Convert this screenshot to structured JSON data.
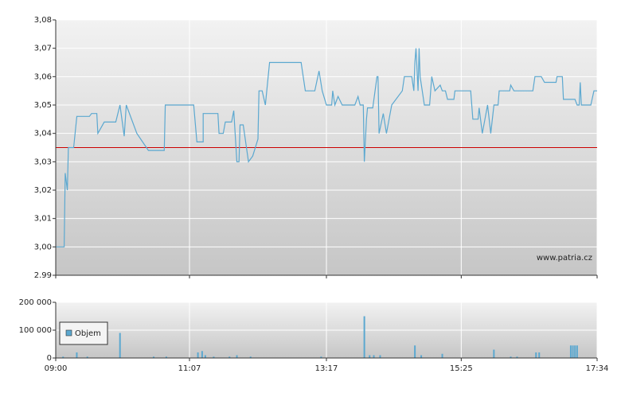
{
  "chart_data": [
    {
      "type": "line",
      "color": "#5ba8d0",
      "x": [
        "09:00",
        "09:08",
        "09:09",
        "09:11",
        "09:12",
        "09:17",
        "09:20",
        "09:32",
        "09:34",
        "09:39",
        "09:40",
        "09:46",
        "09:57",
        "10:01",
        "10:05",
        "10:07",
        "10:17",
        "10:28",
        "10:43",
        "10:44",
        "11:11",
        "11:14",
        "11:20",
        "11:20",
        "11:34",
        "11:35",
        "11:39",
        "11:41",
        "11:47",
        "11:49",
        "11:52",
        "11:54",
        "11:55",
        "11:58",
        "12:03",
        "12:07",
        "12:12",
        "12:13",
        "12:16",
        "12:19",
        "12:23",
        "12:53",
        "12:57",
        "13:06",
        "13:10",
        "13:13",
        "13:17",
        "13:22",
        "13:23",
        "13:25",
        "13:28",
        "13:32",
        "13:44",
        "13:47",
        "13:49",
        "13:52",
        "13:53",
        "13:55",
        "13:56",
        "14:01",
        "14:05",
        "14:06",
        "14:07",
        "14:11",
        "14:14",
        "14:19",
        "14:29",
        "14:31",
        "14:38",
        "14:40",
        "14:41",
        "14:42",
        "14:44",
        "14:45",
        "14:46",
        "14:50",
        "14:55",
        "14:57",
        "15:00",
        "15:05",
        "15:07",
        "15:10",
        "15:12",
        "15:18",
        "15:19",
        "15:34",
        "15:36",
        "15:41",
        "15:42",
        "15:45",
        "15:50",
        "15:53",
        "15:56",
        "16:00",
        "16:01",
        "16:11",
        "16:12",
        "16:15",
        "16:33",
        "16:35",
        "16:41",
        "16:44",
        "16:55",
        "16:56",
        "17:01",
        "17:02",
        "17:13",
        "17:15",
        "17:17",
        "17:18",
        "17:19",
        "17:28",
        "17:31",
        "17:34"
      ],
      "values": [
        3.0,
        3.0,
        3.026,
        3.02,
        3.035,
        3.035,
        3.046,
        3.046,
        3.047,
        3.047,
        3.04,
        3.044,
        3.044,
        3.05,
        3.039,
        3.05,
        3.04,
        3.034,
        3.034,
        3.05,
        3.05,
        3.037,
        3.037,
        3.047,
        3.047,
        3.04,
        3.04,
        3.044,
        3.044,
        3.048,
        3.03,
        3.03,
        3.043,
        3.043,
        3.03,
        3.032,
        3.038,
        3.055,
        3.055,
        3.05,
        3.065,
        3.065,
        3.055,
        3.055,
        3.062,
        3.055,
        3.05,
        3.05,
        3.055,
        3.05,
        3.053,
        3.05,
        3.05,
        3.053,
        3.05,
        3.05,
        3.03,
        3.045,
        3.049,
        3.049,
        3.06,
        3.06,
        3.04,
        3.047,
        3.04,
        3.05,
        3.055,
        3.06,
        3.06,
        3.055,
        3.065,
        3.07,
        3.055,
        3.07,
        3.06,
        3.05,
        3.05,
        3.06,
        3.055,
        3.057,
        3.055,
        3.055,
        3.052,
        3.052,
        3.055,
        3.055,
        3.045,
        3.045,
        3.049,
        3.04,
        3.05,
        3.04,
        3.05,
        3.05,
        3.055,
        3.055,
        3.057,
        3.055,
        3.055,
        3.06,
        3.06,
        3.058,
        3.058,
        3.06,
        3.06,
        3.052,
        3.052,
        3.05,
        3.05,
        3.058,
        3.05,
        3.05,
        3.055,
        3.055
      ],
      "xlim": [
        "09:00",
        "17:34"
      ],
      "xticks": [
        "09:00",
        "11:07",
        "13:17",
        "15:25",
        "17:34"
      ],
      "ylim": [
        2.99,
        3.08
      ],
      "yticks": [
        {
          "value": 2.99,
          "label": "2.99"
        },
        {
          "value": 3.0,
          "label": "3,00"
        },
        {
          "value": 3.01,
          "label": "3,01"
        },
        {
          "value": 3.02,
          "label": "3,02"
        },
        {
          "value": 3.03,
          "label": "3,03"
        },
        {
          "value": 3.04,
          "label": "3,04"
        },
        {
          "value": 3.05,
          "label": "3,05"
        },
        {
          "value": 3.06,
          "label": "3,06"
        },
        {
          "value": 3.07,
          "label": "3,07"
        },
        {
          "value": 3.08,
          "label": "3,08"
        }
      ],
      "reference_line": 3.035,
      "reference_color": "#cc0000",
      "watermark": "www.patria.cz",
      "grid": true
    },
    {
      "type": "bar",
      "x": [
        "09:07",
        "09:20",
        "09:30",
        "10:01",
        "10:33",
        "10:45",
        "11:15",
        "11:19",
        "11:22",
        "11:30",
        "11:45",
        "11:52",
        "12:05",
        "13:12",
        "13:53",
        "13:58",
        "14:02",
        "14:08",
        "14:41",
        "14:47",
        "15:07",
        "15:56",
        "16:12",
        "16:18",
        "16:36",
        "16:39",
        "17:09",
        "17:11",
        "17:13",
        "17:15"
      ],
      "series": [
        {
          "name": "Objem",
          "color": "#5ba8d0",
          "values": [
            5000,
            20000,
            5000,
            90000,
            5000,
            5000,
            20000,
            25000,
            10000,
            5000,
            5000,
            10000,
            5000,
            5000,
            150000,
            10000,
            10000,
            10000,
            45000,
            10000,
            15000,
            30000,
            5000,
            5000,
            20000,
            20000,
            45000,
            45000,
            45000,
            45000
          ]
        }
      ],
      "xlim": [
        "09:00",
        "17:34"
      ],
      "xticks": [
        "09:00",
        "11:07",
        "13:17",
        "15:25",
        "17:34"
      ],
      "ylim": [
        0,
        200000
      ],
      "yticks": [
        0,
        {
          "value": 100000,
          "label": "100 000"
        },
        {
          "value": 200000,
          "label": "200 000"
        }
      ],
      "legend": "upper left",
      "grid": true
    }
  ]
}
